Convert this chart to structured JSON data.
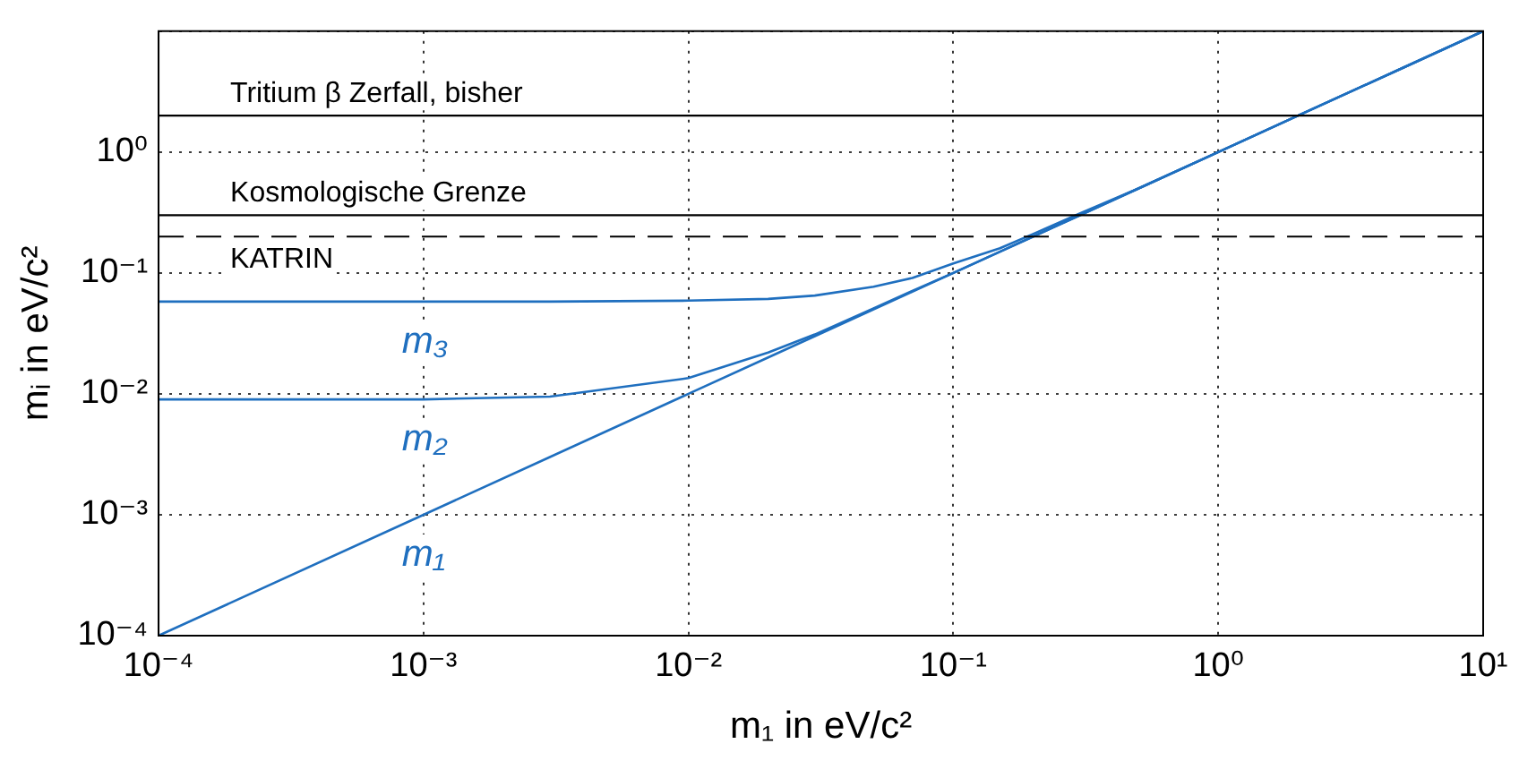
{
  "chart_data": {
    "type": "line",
    "xlabel": "m₁ in eV/c²",
    "ylabel": "mᵢ in eV/c²",
    "log": "xy",
    "grid": true,
    "legend": false,
    "marker": "none",
    "x": [
      0.0001,
      0.001,
      0.003,
      0.01,
      0.02,
      0.03,
      0.05,
      0.07,
      0.1,
      0.15,
      0.2,
      0.3,
      0.5,
      1,
      2,
      5,
      10
    ],
    "xlim": [
      0.0001,
      10
    ],
    "ylim": [
      0.0001,
      10
    ],
    "xticks": [
      {
        "value": 0.0001,
        "label": "10⁻⁴"
      },
      {
        "value": 0.001,
        "label": "10⁻³"
      },
      {
        "value": 0.01,
        "label": "10⁻²"
      },
      {
        "value": 0.1,
        "label": "10⁻¹"
      },
      {
        "value": 1,
        "label": "10⁰"
      },
      {
        "value": 10,
        "label": "10¹"
      }
    ],
    "yticks": [
      {
        "value": 0.0001,
        "label": "10⁻⁴"
      },
      {
        "value": 0.001,
        "label": "10⁻³"
      },
      {
        "value": 0.01,
        "label": "10⁻²"
      },
      {
        "value": 0.1,
        "label": "10⁻¹"
      },
      {
        "value": 1,
        "label": "10⁰"
      },
      {
        "value": 10,
        "label": null
      }
    ],
    "series": [
      {
        "name": "m₃",
        "color": "#1f6fbf",
        "values": [
          0.058,
          0.058,
          0.058,
          0.059,
          0.061,
          0.065,
          0.077,
          0.091,
          0.12,
          0.16,
          0.21,
          0.31,
          0.5,
          1,
          2,
          5,
          10
        ]
      },
      {
        "name": "m₂",
        "color": "#1f6fbf",
        "values": [
          0.009,
          0.009,
          0.0095,
          0.0135,
          0.022,
          0.031,
          0.051,
          0.071,
          0.1,
          0.15,
          0.2,
          0.3,
          0.5,
          1,
          2,
          5,
          10
        ]
      },
      {
        "name": "m₁",
        "color": "#1f6fbf",
        "values": [
          0.0001,
          0.001,
          0.003,
          0.01,
          0.02,
          0.03,
          0.05,
          0.07,
          0.1,
          0.15,
          0.2,
          0.3,
          0.5,
          1,
          2,
          5,
          10
        ]
      }
    ],
    "ref_lines": [
      {
        "axis": "y",
        "value": 2,
        "label": "Tritium β Zerfall, bisher",
        "color": "#000000",
        "line_style": "solid"
      },
      {
        "axis": "y",
        "value": 0.3,
        "label": "Kosmologische Grenze",
        "color": "#000000",
        "line_style": "solid"
      },
      {
        "axis": "y",
        "value": 0.2,
        "label": "KATRIN",
        "color": "#000000",
        "line_style": "dashed"
      }
    ]
  }
}
